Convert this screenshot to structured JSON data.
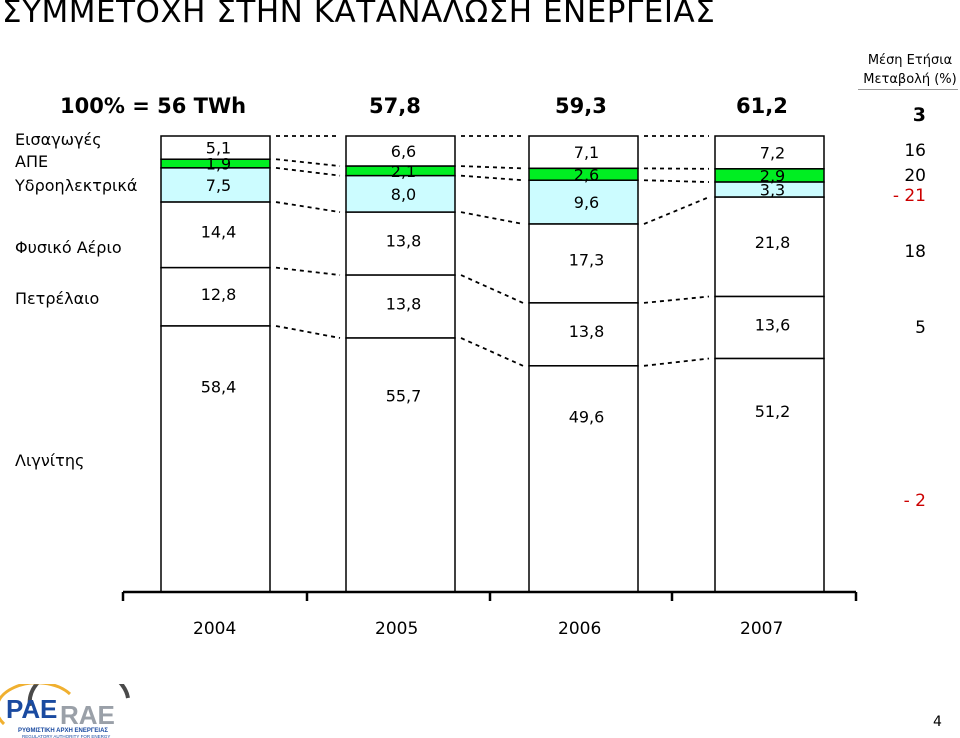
{
  "page": {
    "title": "ΣΥΜΜΕΤΟΧΗ ΣΤΗΝ ΚΑΤΑΝΑΛΩΣΗ ΕΝΕΡΓΕΙΑΣ",
    "page_number": "4",
    "logo_text": "ΡΑΕ RAE",
    "logo_subtitle": "ΡΥΘΜΙΣΤΙΚΗ ΑΡΧΗ ΕΝΕΡΓΕΙΑΣ / REGULATORY AUTHORITY FOR ENERGY"
  },
  "chart_data": {
    "type": "bar",
    "stacked": true,
    "normalized": true,
    "categories": [
      "2004",
      "2005",
      "2006",
      "2007"
    ],
    "totals": [
      "100% = 56 TWh",
      "57,8",
      "59,3",
      "61,2"
    ],
    "series": [
      {
        "name": "Λιγνίτης",
        "values": [
          58.4,
          55.7,
          49.6,
          51.2
        ],
        "labels": [
          "58,4",
          "55,7",
          "49,6",
          "51,2"
        ],
        "color": "#ffffff"
      },
      {
        "name": "Πετρέλαιο",
        "values": [
          12.8,
          13.8,
          13.8,
          13.6
        ],
        "labels": [
          "12,8",
          "13,8",
          "13,8",
          "13,6"
        ],
        "color": "#ffffff"
      },
      {
        "name": "Φυσικό Αέριο",
        "values": [
          14.4,
          13.8,
          17.3,
          21.8
        ],
        "labels": [
          "14,4",
          "13,8",
          "17,3",
          "21,8"
        ],
        "color": "#ffffff"
      },
      {
        "name": "Υδροηλεκτρικά",
        "values": [
          7.5,
          8.0,
          9.6,
          3.3
        ],
        "labels": [
          "7,5",
          "8,0",
          "9,6",
          "3,3"
        ],
        "color": "#ccfcff"
      },
      {
        "name": "ΑΠΕ",
        "values": [
          1.9,
          2.1,
          2.6,
          2.9
        ],
        "labels": [
          "1,9",
          "2,1",
          "2,6",
          "2,9"
        ],
        "color": "#00ee22"
      },
      {
        "name": "Εισαγωγές",
        "values": [
          5.1,
          6.6,
          7.1,
          7.2
        ],
        "labels": [
          "5,1",
          "6,6",
          "7,1",
          "7,2"
        ],
        "color": "#ffffff"
      }
    ],
    "growth": {
      "title_line1": "Μέση Ετήσια",
      "title_line2": "Μεταβολή (%)",
      "total": "3",
      "values": [
        {
          "name": "Εισαγωγές",
          "value": "16"
        },
        {
          "name": "ΑΠΕ",
          "value": "20"
        },
        {
          "name": "Υδροηλεκτρικά",
          "value": "- 21"
        },
        {
          "name": "Φυσικό Αέριο",
          "value": "18"
        },
        {
          "name": "Πετρέλαιο",
          "value": "5"
        },
        {
          "name": "Λιγνίτης",
          "value": "- 2"
        }
      ]
    },
    "ylim": [
      0,
      100
    ],
    "grid": false,
    "legend": "left row labels"
  }
}
